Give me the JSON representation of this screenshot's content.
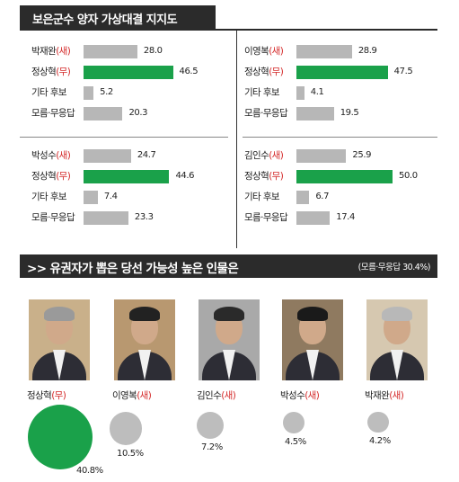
{
  "title": "보은군수 양자 가상대결 지지도",
  "chart_data": [
    {
      "type": "bar",
      "categories": [
        "박재완(새)",
        "정상혁(무)",
        "기타 후보",
        "모름·무응답"
      ],
      "values": [
        28.0,
        46.5,
        5.2,
        20.3
      ],
      "highlight": 1
    },
    {
      "type": "bar",
      "categories": [
        "이영복(새)",
        "정상혁(무)",
        "기타 후보",
        "모름·무응답"
      ],
      "values": [
        28.9,
        47.5,
        4.1,
        19.5
      ],
      "highlight": 1
    },
    {
      "type": "bar",
      "categories": [
        "박성수(새)",
        "정상혁(무)",
        "기타 후보",
        "모름·무응답"
      ],
      "values": [
        24.7,
        44.6,
        7.4,
        23.3
      ],
      "highlight": 1
    },
    {
      "type": "bar",
      "categories": [
        "김인수(새)",
        "정상혁(무)",
        "기타 후보",
        "모름·무응답"
      ],
      "values": [
        25.9,
        50.0,
        6.7,
        17.4
      ],
      "highlight": 1
    },
    {
      "type": "bubble",
      "title": ">> 유권자가 뽑은 당선 가능성 높은 인물은",
      "note": "(모름·무응답 30.4%)",
      "categories": [
        "정상혁(무)",
        "이영복(새)",
        "김인수(새)",
        "박성수(새)",
        "박재완(새)"
      ],
      "values": [
        40.8,
        10.5,
        7.2,
        4.5,
        4.2
      ],
      "labels": [
        "40.8%",
        "10.5%",
        "7.2%",
        "4.5%",
        "4.2%"
      ]
    }
  ],
  "colors": {
    "winner": "#1aa14a",
    "other": "#bdbdbd",
    "party": "#d42a2a",
    "dark": "#2b2b2b"
  },
  "photos": [
    "portrait-jung",
    "portrait-lee",
    "portrait-kim",
    "portrait-park-sungsu",
    "portrait-park-jaewan"
  ]
}
